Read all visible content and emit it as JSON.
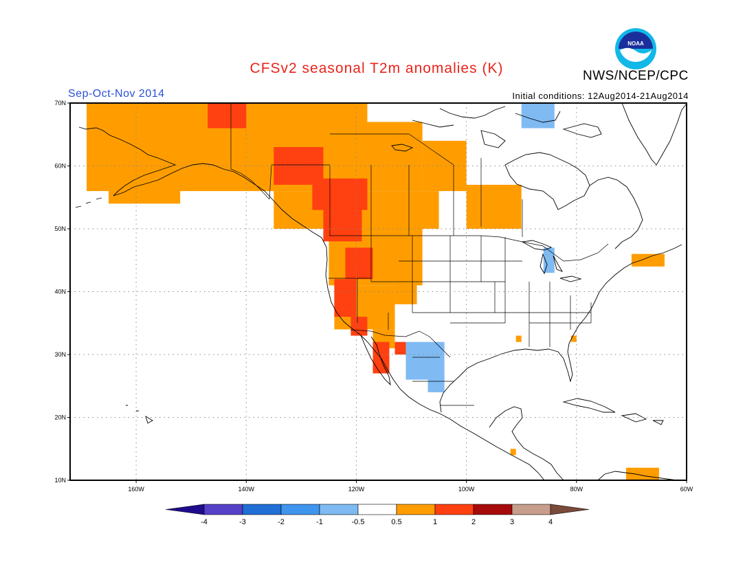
{
  "header": {
    "title": "CFSv2 seasonal T2m anomalies (K)",
    "agency": "NWS/NCEP/CPC",
    "logo_text": "NOAA",
    "season": "Sep-Oct-Nov 2014",
    "initial_conditions": "Initial conditions: 12Aug2014-21Aug2014"
  },
  "map": {
    "projection": "equirectangular",
    "lon_range": [
      -172,
      -60
    ],
    "lat_range": [
      10,
      70
    ],
    "gridlines": "dotted",
    "lat_ticks": [
      {
        "value": 70,
        "label": "70N"
      },
      {
        "value": 60,
        "label": "60N"
      },
      {
        "value": 50,
        "label": "50N"
      },
      {
        "value": 40,
        "label": "40N"
      },
      {
        "value": 30,
        "label": "30N"
      },
      {
        "value": 20,
        "label": "20N"
      },
      {
        "value": 10,
        "label": "10N"
      }
    ],
    "lon_ticks": [
      {
        "value": -160,
        "label": "160W"
      },
      {
        "value": -140,
        "label": "140W"
      },
      {
        "value": -120,
        "label": "120W"
      },
      {
        "value": -100,
        "label": "100W"
      },
      {
        "value": -80,
        "label": "80W"
      },
      {
        "value": -60,
        "label": "60W"
      }
    ]
  },
  "colorbar": {
    "labels": [
      "-4",
      "-3",
      "-2",
      "-1",
      "-0.5",
      "0.5",
      "1",
      "2",
      "3",
      "4"
    ],
    "colors": {
      "lt_-4": "#1e0c8c",
      "-4_-3": "#5540c8",
      "-3_-2": "#1f6fd6",
      "-2_-1": "#3f95ee",
      "-1_-0.5": "#7fbaf2",
      "-0.5_0.5": "#ffffff",
      "0.5_1": "#ff9d00",
      "1_2": "#ff4010",
      "2_3": "#a60a0a",
      "3_4": "#c79d8c",
      "gt_4": "#7a4a3a"
    }
  },
  "chart_data": {
    "type": "heatmap",
    "variable": "2m temperature anomaly",
    "units": "K",
    "regions": [
      {
        "bin": "0.5_1",
        "lon": [
          -169,
          -118
        ],
        "lat": [
          56,
          70
        ]
      },
      {
        "bin": "0.5_1",
        "lon": [
          -165,
          -152
        ],
        "lat": [
          54,
          60
        ]
      },
      {
        "bin": "0.5_1",
        "lon": [
          -118,
          -108
        ],
        "lat": [
          56,
          67
        ]
      },
      {
        "bin": "0.5_1",
        "lon": [
          -108,
          -100
        ],
        "lat": [
          56,
          64
        ]
      },
      {
        "bin": "0.5_1",
        "lon": [
          -135,
          -105
        ],
        "lat": [
          50,
          56
        ]
      },
      {
        "bin": "0.5_1",
        "lon": [
          -100,
          -90
        ],
        "lat": [
          50,
          57
        ]
      },
      {
        "bin": "0.5_1",
        "lon": [
          -125,
          -108
        ],
        "lat": [
          41,
          50
        ]
      },
      {
        "bin": "0.5_1",
        "lon": [
          -124,
          -113
        ],
        "lat": [
          34,
          41
        ]
      },
      {
        "bin": "0.5_1",
        "lon": [
          -113,
          -109
        ],
        "lat": [
          38,
          42
        ]
      },
      {
        "bin": "0.5_1",
        "lon": [
          -117,
          -113
        ],
        "lat": [
          31,
          34
        ]
      },
      {
        "bin": "0.5_1",
        "lon": [
          -70,
          -64
        ],
        "lat": [
          44,
          46
        ]
      },
      {
        "bin": "0.5_1",
        "lon": [
          -71,
          -65
        ],
        "lat": [
          10,
          12
        ]
      },
      {
        "bin": "0.5_1",
        "lon": [
          -91,
          -90
        ],
        "lat": [
          32,
          33
        ]
      },
      {
        "bin": "0.5_1",
        "lon": [
          -81,
          -80
        ],
        "lat": [
          32,
          33
        ]
      },
      {
        "bin": "0.5_1",
        "lon": [
          -106,
          -105
        ],
        "lat": [
          24,
          25
        ]
      },
      {
        "bin": "0.5_1",
        "lon": [
          -92,
          -91
        ],
        "lat": [
          14,
          15
        ]
      },
      {
        "bin": "1_2",
        "lon": [
          -147,
          -140
        ],
        "lat": [
          66,
          70
        ]
      },
      {
        "bin": "1_2",
        "lon": [
          -135,
          -126
        ],
        "lat": [
          57,
          63
        ]
      },
      {
        "bin": "1_2",
        "lon": [
          -128,
          -118
        ],
        "lat": [
          53,
          58
        ]
      },
      {
        "bin": "1_2",
        "lon": [
          -126,
          -119
        ],
        "lat": [
          48,
          53
        ]
      },
      {
        "bin": "1_2",
        "lon": [
          -122,
          -117
        ],
        "lat": [
          42,
          47
        ]
      },
      {
        "bin": "1_2",
        "lon": [
          -124,
          -120
        ],
        "lat": [
          36,
          42
        ]
      },
      {
        "bin": "1_2",
        "lon": [
          -121,
          -118
        ],
        "lat": [
          33,
          36
        ]
      },
      {
        "bin": "1_2",
        "lon": [
          -117,
          -114
        ],
        "lat": [
          27,
          32
        ]
      },
      {
        "bin": "1_2",
        "lon": [
          -113,
          -111
        ],
        "lat": [
          30,
          32
        ]
      },
      {
        "bin": "-1_-0.5",
        "lon": [
          -111,
          -104
        ],
        "lat": [
          26,
          32
        ]
      },
      {
        "bin": "-1_-0.5",
        "lon": [
          -107,
          -104
        ],
        "lat": [
          24,
          27
        ]
      },
      {
        "bin": "-1_-0.5",
        "lon": [
          -90,
          -84
        ],
        "lat": [
          66,
          70
        ]
      },
      {
        "bin": "-1_-0.5",
        "lon": [
          -86,
          -84
        ],
        "lat": [
          43,
          47
        ]
      }
    ]
  }
}
